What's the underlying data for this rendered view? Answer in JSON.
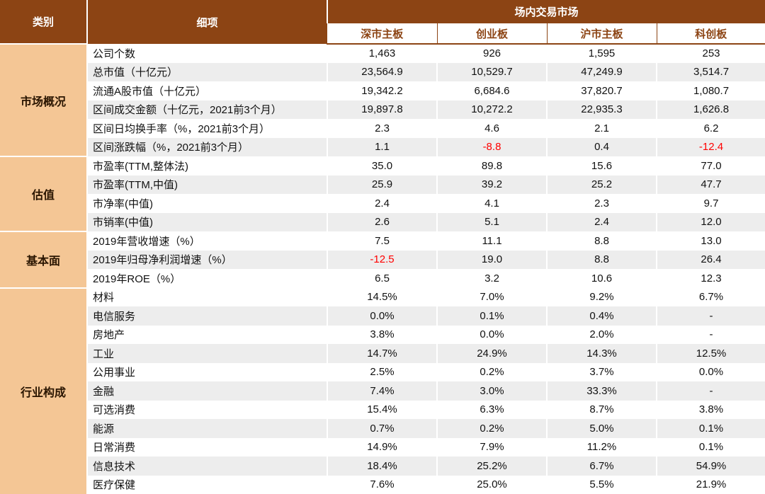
{
  "colors": {
    "header_bg": "#8C4414",
    "category_bg": "#F4C695",
    "stripe_bg": "#EDEDED",
    "negative": "#FF0000",
    "subheader_text": "#8C4414",
    "category_text": "#2A1500"
  },
  "chart_data": {
    "type": "table",
    "title": "场内交易市场",
    "header_group": "场内交易市场",
    "columns": [
      "类别",
      "细项",
      "深市主板",
      "创业板",
      "沪市主板",
      "科创板"
    ],
    "groups": [
      {
        "category": "市场概况",
        "rows": [
          {
            "label": "公司个数",
            "values": [
              "1,463",
              "926",
              "1,595",
              "253"
            ]
          },
          {
            "label": "总市值（十亿元）",
            "values": [
              "23,564.9",
              "10,529.7",
              "47,249.9",
              "3,514.7"
            ]
          },
          {
            "label": "流通A股市值（十亿元）",
            "values": [
              "19,342.2",
              "6,684.6",
              "37,820.7",
              "1,080.7"
            ]
          },
          {
            "label": "区间成交金额（十亿元，2021前3个月）",
            "values": [
              "19,897.8",
              "10,272.2",
              "22,935.3",
              "1,626.8"
            ]
          },
          {
            "label": "区间日均换手率（%，2021前3个月）",
            "values": [
              "2.3",
              "4.6",
              "2.1",
              "6.2"
            ]
          },
          {
            "label": "区间涨跌幅（%，2021前3个月）",
            "values": [
              "1.1",
              "-8.8",
              "0.4",
              "-12.4"
            ]
          }
        ]
      },
      {
        "category": "估值",
        "rows": [
          {
            "label": "市盈率(TTM,整体法)",
            "values": [
              "35.0",
              "89.8",
              "15.6",
              "77.0"
            ]
          },
          {
            "label": "市盈率(TTM,中值)",
            "values": [
              "25.9",
              "39.2",
              "25.2",
              "47.7"
            ]
          },
          {
            "label": "市净率(中值)",
            "values": [
              "2.4",
              "4.1",
              "2.3",
              "9.7"
            ]
          },
          {
            "label": "市销率(中值)",
            "values": [
              "2.6",
              "5.1",
              "2.4",
              "12.0"
            ]
          }
        ]
      },
      {
        "category": "基本面",
        "rows": [
          {
            "label": "2019年营收增速（%）",
            "values": [
              "7.5",
              "11.1",
              "8.8",
              "13.0"
            ]
          },
          {
            "label": "2019年归母净利润增速（%）",
            "values": [
              "-12.5",
              "19.0",
              "8.8",
              "26.4"
            ]
          },
          {
            "label": "2019年ROE（%）",
            "values": [
              "6.5",
              "3.2",
              "10.6",
              "12.3"
            ]
          }
        ]
      },
      {
        "category": "行业构成",
        "rows": [
          {
            "label": "材料",
            "values": [
              "14.5%",
              "7.0%",
              "9.2%",
              "6.7%"
            ]
          },
          {
            "label": "电信服务",
            "values": [
              "0.0%",
              "0.1%",
              "0.4%",
              "-"
            ]
          },
          {
            "label": "房地产",
            "values": [
              "3.8%",
              "0.0%",
              "2.0%",
              "-"
            ]
          },
          {
            "label": "工业",
            "values": [
              "14.7%",
              "24.9%",
              "14.3%",
              "12.5%"
            ]
          },
          {
            "label": "公用事业",
            "values": [
              "2.5%",
              "0.2%",
              "3.7%",
              "0.0%"
            ]
          },
          {
            "label": "金融",
            "values": [
              "7.4%",
              "3.0%",
              "33.3%",
              "-"
            ]
          },
          {
            "label": "可选消费",
            "values": [
              "15.4%",
              "6.3%",
              "8.7%",
              "3.8%"
            ]
          },
          {
            "label": "能源",
            "values": [
              "0.7%",
              "0.2%",
              "5.0%",
              "0.1%"
            ]
          },
          {
            "label": "日常消费",
            "values": [
              "14.9%",
              "7.9%",
              "11.2%",
              "0.1%"
            ]
          },
          {
            "label": "信息技术",
            "values": [
              "18.4%",
              "25.2%",
              "6.7%",
              "54.9%"
            ]
          },
          {
            "label": "医疗保健",
            "values": [
              "7.6%",
              "25.0%",
              "5.5%",
              "21.9%"
            ]
          }
        ]
      }
    ]
  }
}
